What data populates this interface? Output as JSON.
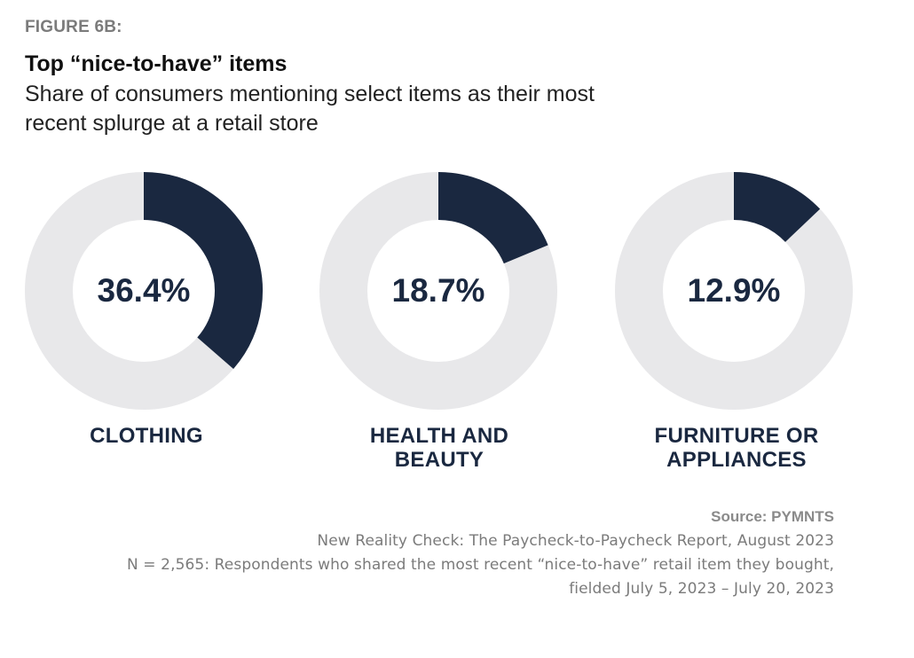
{
  "figure_label": "FIGURE 6B:",
  "title": "Top “nice-to-have” items",
  "subtitle": "Share of consumers mentioning select items as their most recent splurge at a retail store",
  "chart_data": {
    "type": "pie",
    "variant": "donut",
    "colors": {
      "value": "#1a2840",
      "remainder": "#e8e8ea"
    },
    "items": [
      {
        "label": "CLOTHING",
        "value": 36.4,
        "value_label": "36.4%"
      },
      {
        "label": "HEALTH AND BEAUTY",
        "value": 18.7,
        "value_label": "18.7%"
      },
      {
        "label": "FURNITURE OR APPLIANCES",
        "value": 12.9,
        "value_label": "12.9%"
      }
    ]
  },
  "source": {
    "title": "Source: PYMNTS",
    "lines": [
      "New Reality Check: The Paycheck-to-Paycheck Report, August 2023",
      "N = 2,565: Respondents who shared the most recent “nice-to-have” retail item they bought,",
      "fielded July 5, 2023 – July 20, 2023"
    ]
  }
}
